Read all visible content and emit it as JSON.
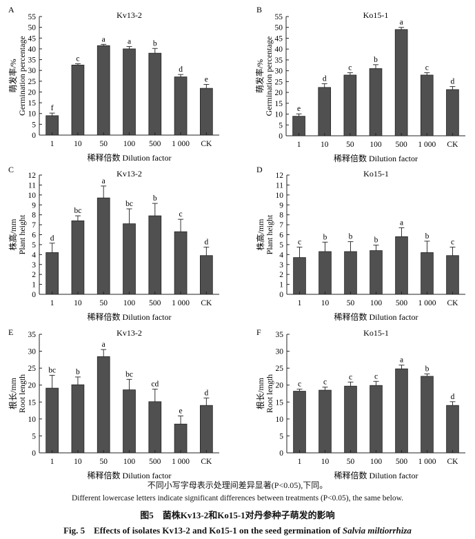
{
  "chart_data": [
    {
      "type": "bar",
      "panel": "A",
      "title": "Kv13-2",
      "ylabel_cn": "萌发率/%",
      "ylabel": "Germination percentage",
      "xlabel": "稀释倍数 Dilution factor",
      "ylim": [
        0,
        55
      ],
      "ytick_step": 5,
      "categories": [
        "1",
        "10",
        "50",
        "100",
        "500",
        "1 000",
        "CK"
      ],
      "values": [
        9,
        32.5,
        41.5,
        40,
        38,
        27,
        21.7
      ],
      "errors": [
        1.2,
        0.6,
        0.6,
        1.1,
        2.2,
        1.1,
        1.8
      ],
      "letters": [
        "f",
        "c",
        "a",
        "a",
        "b",
        "d",
        "e"
      ]
    },
    {
      "type": "bar",
      "panel": "B",
      "title": "Ko15-1",
      "ylabel_cn": "萌发率/%",
      "ylabel": "Germination percentage",
      "xlabel": "稀释倍数 Dilution factor",
      "ylim": [
        0,
        55
      ],
      "ytick_step": 5,
      "categories": [
        "1",
        "10",
        "50",
        "100",
        "500",
        "1 000",
        "CK"
      ],
      "values": [
        9,
        22.3,
        28,
        31,
        49,
        28,
        21.3
      ],
      "errors": [
        1.1,
        1.7,
        1.1,
        1.8,
        1,
        1.1,
        1.4
      ],
      "letters": [
        "e",
        "d",
        "c",
        "b",
        "a",
        "c",
        "d"
      ]
    },
    {
      "type": "bar",
      "panel": "C",
      "title": "Kv13-2",
      "ylabel_cn": "株高/mm",
      "ylabel": "Plant height",
      "xlabel": "稀释倍数 Dilution factor",
      "ylim": [
        0,
        12
      ],
      "ytick_step": 1,
      "categories": [
        "1",
        "10",
        "50",
        "100",
        "500",
        "1 000",
        "CK"
      ],
      "values": [
        4.2,
        7.4,
        9.7,
        7.1,
        7.9,
        6.3,
        3.9
      ],
      "errors": [
        0.95,
        0.5,
        1.2,
        1.5,
        1.25,
        1.25,
        0.85
      ],
      "letters": [
        "d",
        "bc",
        "a",
        "bc",
        "b",
        "c",
        "d"
      ]
    },
    {
      "type": "bar",
      "panel": "D",
      "title": "Ko15-1",
      "ylabel_cn": "株高/mm",
      "ylabel": "Plant height",
      "xlabel": "稀释倍数 Dilution factor",
      "ylim": [
        0,
        12
      ],
      "ytick_step": 1,
      "categories": [
        "1",
        "10",
        "50",
        "100",
        "500",
        "1 000",
        "CK"
      ],
      "values": [
        3.7,
        4.3,
        4.3,
        4.4,
        5.8,
        4.2,
        3.9
      ],
      "errors": [
        1.05,
        0.95,
        1,
        0.55,
        0.9,
        1.15,
        0.85
      ],
      "letters": [
        "c",
        "b",
        "b",
        "b",
        "a",
        "b",
        "c"
      ]
    },
    {
      "type": "bar",
      "panel": "E",
      "title": "Kv13-2",
      "ylabel_cn": "根长/mm",
      "ylabel": "Root length",
      "xlabel": "稀释倍数 Dilution factor",
      "ylim": [
        0,
        35
      ],
      "ytick_step": 5,
      "categories": [
        "1",
        "10",
        "50",
        "100",
        "500",
        "1 000",
        "CK"
      ],
      "values": [
        19.1,
        20.1,
        28.4,
        18.6,
        15.1,
        8.5,
        14
      ],
      "errors": [
        3.8,
        2.3,
        2.1,
        3.1,
        3.7,
        2.4,
        2.2
      ],
      "letters": [
        "bc",
        "b",
        "a",
        "bc",
        "cd",
        "e",
        "d"
      ]
    },
    {
      "type": "bar",
      "panel": "F",
      "title": "Ko15-1",
      "ylabel_cn": "根长/mm",
      "ylabel": "Root length",
      "xlabel": "稀释倍数 Dilution factor",
      "ylim": [
        0,
        35
      ],
      "ytick_step": 5,
      "categories": [
        "1",
        "10",
        "50",
        "100",
        "500",
        "1 000",
        "CK"
      ],
      "values": [
        18.2,
        18.5,
        19.7,
        19.9,
        24.8,
        22.6,
        14
      ],
      "errors": [
        0.6,
        0.9,
        1.2,
        1.2,
        1.1,
        0.7,
        1.1
      ],
      "letters": [
        "c",
        "c",
        "c",
        "c",
        "a",
        "b",
        "d"
      ]
    }
  ],
  "colors": {
    "bar": "#505050",
    "axis": "#222222"
  },
  "captions": {
    "note_cn": "不同小写字母表示处理间差异显著(P<0.05),下同。",
    "note_en": "Different lowercase letters indicate significant differences between treatments (P<0.05), the same below.",
    "fig_cn": "图5　菌株Kv13-2和Ko15-1对丹参种子萌发的影响",
    "fig_en": "Fig. 5　Effects of isolates Kv13-2 and Ko15-1 on the seed germination of ",
    "fig_en_species": "Salvia miltiorrhiza"
  }
}
